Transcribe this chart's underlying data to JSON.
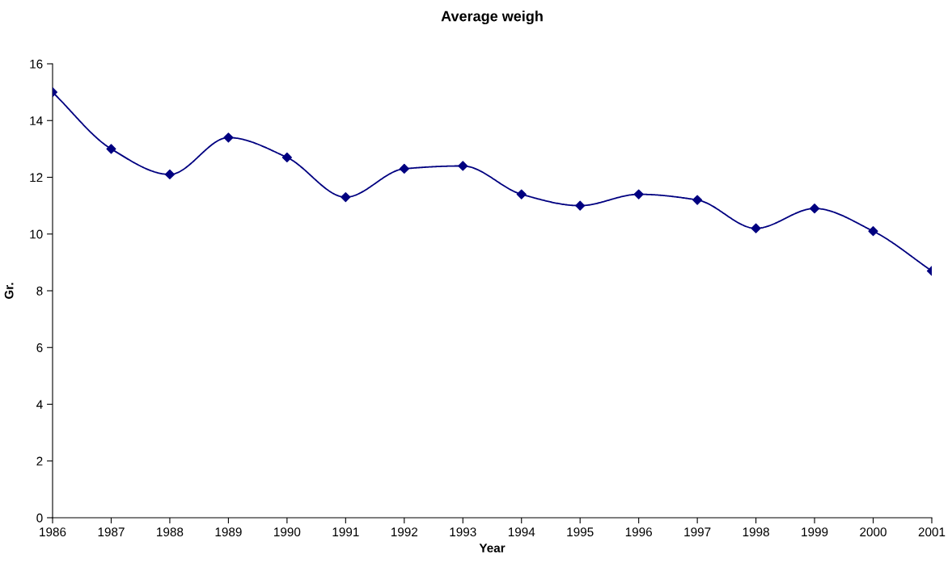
{
  "chart_data": {
    "type": "line",
    "title": "Average weigh",
    "xlabel": "Year",
    "ylabel": "Gr.",
    "x": [
      1986,
      1987,
      1988,
      1989,
      1990,
      1991,
      1992,
      1993,
      1994,
      1995,
      1996,
      1997,
      1998,
      1999,
      2000,
      2001
    ],
    "series": [
      {
        "color": "#000080",
        "values": [
          15.0,
          13.0,
          12.1,
          13.4,
          12.7,
          11.3,
          12.3,
          12.4,
          11.4,
          11.0,
          11.4,
          11.2,
          10.2,
          10.9,
          10.1,
          8.7
        ]
      }
    ],
    "xlim": [
      1986,
      2001
    ],
    "xticks": [
      1986,
      1987,
      1988,
      1989,
      1990,
      1991,
      1992,
      1993,
      1994,
      1995,
      1996,
      1997,
      1998,
      1999,
      2000,
      2001
    ],
    "ylim": [
      0,
      16
    ],
    "yticks": [
      0,
      2,
      4,
      6,
      8,
      10,
      12,
      14,
      16
    ],
    "grid": false,
    "legend": false,
    "marker": "diamond",
    "line_style": "solid"
  }
}
